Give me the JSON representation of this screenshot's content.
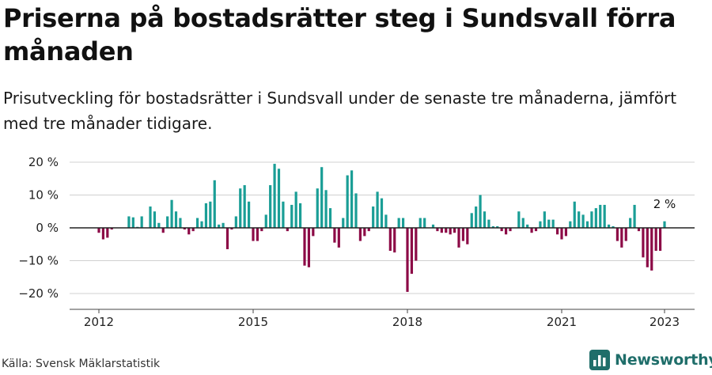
{
  "title": "Priserna på bostadsrätter steg i Sundsvall förra månaden",
  "subtitle": "Prisutveckling för bostadsrätter i Sundsvall under de senaste tre månaderna, jämfört med tre månader tidigare.",
  "source": "Källa: Svensk Mäklarstatistik",
  "brand": "Newsworthy",
  "colors": {
    "positive": "#1a9e96",
    "negative": "#8c0a46",
    "grid": "#d0d0d0",
    "brand": "#1f6e6a"
  },
  "chart_data": {
    "type": "bar",
    "xlabel": "",
    "ylabel": "",
    "ylim": [
      -22,
      22
    ],
    "y_ticks": [
      20,
      10,
      0,
      -10,
      -20
    ],
    "y_tick_labels": [
      "20 %",
      "10 %",
      "0 %",
      "−10 %",
      "−20 %"
    ],
    "x_ticks": [
      "2012-01",
      "2015-01",
      "2018-01",
      "2021-01",
      "2023-01"
    ],
    "x_tick_labels": [
      "2012",
      "2015",
      "2018",
      "2021",
      "2023"
    ],
    "grid": true,
    "annotation": {
      "date": "2023-01",
      "text": "2 %"
    },
    "series": [
      {
        "values": [
          {
            "date": "2012-01",
            "value": -1.5
          },
          {
            "date": "2012-02",
            "value": -3.5
          },
          {
            "date": "2012-03",
            "value": -3
          },
          {
            "date": "2012-04",
            "value": -0.5
          },
          {
            "date": "2012-05",
            "value": 0
          },
          {
            "date": "2012-06",
            "value": 0
          },
          {
            "date": "2012-07",
            "value": 0
          },
          {
            "date": "2012-08",
            "value": 3.5
          },
          {
            "date": "2012-09",
            "value": 3.2
          },
          {
            "date": "2012-10",
            "value": 0.3
          },
          {
            "date": "2012-11",
            "value": 3.5
          },
          {
            "date": "2012-12",
            "value": 0
          },
          {
            "date": "2013-01",
            "value": 6.5
          },
          {
            "date": "2013-02",
            "value": 5
          },
          {
            "date": "2013-03",
            "value": 1.5
          },
          {
            "date": "2013-04",
            "value": -1.5
          },
          {
            "date": "2013-05",
            "value": 3.5
          },
          {
            "date": "2013-06",
            "value": 8.5
          },
          {
            "date": "2013-07",
            "value": 5
          },
          {
            "date": "2013-08",
            "value": 3
          },
          {
            "date": "2013-09",
            "value": -0.5
          },
          {
            "date": "2013-10",
            "value": -2
          },
          {
            "date": "2013-11",
            "value": -1
          },
          {
            "date": "2013-12",
            "value": 3
          },
          {
            "date": "2014-01",
            "value": 2
          },
          {
            "date": "2014-02",
            "value": 7.5
          },
          {
            "date": "2014-03",
            "value": 8
          },
          {
            "date": "2014-04",
            "value": 14.5
          },
          {
            "date": "2014-05",
            "value": 1
          },
          {
            "date": "2014-06",
            "value": 1.5
          },
          {
            "date": "2014-07",
            "value": -6.5
          },
          {
            "date": "2014-08",
            "value": -0.5
          },
          {
            "date": "2014-09",
            "value": 3.5
          },
          {
            "date": "2014-10",
            "value": 12
          },
          {
            "date": "2014-11",
            "value": 13
          },
          {
            "date": "2014-12",
            "value": 8
          },
          {
            "date": "2015-01",
            "value": -4
          },
          {
            "date": "2015-02",
            "value": -4
          },
          {
            "date": "2015-03",
            "value": -1
          },
          {
            "date": "2015-04",
            "value": 4
          },
          {
            "date": "2015-05",
            "value": 13
          },
          {
            "date": "2015-06",
            "value": 19.5
          },
          {
            "date": "2015-07",
            "value": 18
          },
          {
            "date": "2015-08",
            "value": 8
          },
          {
            "date": "2015-09",
            "value": -1
          },
          {
            "date": "2015-10",
            "value": 7
          },
          {
            "date": "2015-11",
            "value": 11
          },
          {
            "date": "2015-12",
            "value": 7.5
          },
          {
            "date": "2016-01",
            "value": -11.5
          },
          {
            "date": "2016-02",
            "value": -12
          },
          {
            "date": "2016-03",
            "value": -2.5
          },
          {
            "date": "2016-04",
            "value": 12
          },
          {
            "date": "2016-05",
            "value": 18.5
          },
          {
            "date": "2016-06",
            "value": 11.5
          },
          {
            "date": "2016-07",
            "value": 6
          },
          {
            "date": "2016-08",
            "value": -4.5
          },
          {
            "date": "2016-09",
            "value": -6
          },
          {
            "date": "2016-10",
            "value": 3
          },
          {
            "date": "2016-11",
            "value": 16
          },
          {
            "date": "2016-12",
            "value": 17.5
          },
          {
            "date": "2017-01",
            "value": 10.5
          },
          {
            "date": "2017-02",
            "value": -4
          },
          {
            "date": "2017-03",
            "value": -2.5
          },
          {
            "date": "2017-04",
            "value": -1
          },
          {
            "date": "2017-05",
            "value": 6.5
          },
          {
            "date": "2017-06",
            "value": 11
          },
          {
            "date": "2017-07",
            "value": 9
          },
          {
            "date": "2017-08",
            "value": 4
          },
          {
            "date": "2017-09",
            "value": -7
          },
          {
            "date": "2017-10",
            "value": -7.5
          },
          {
            "date": "2017-11",
            "value": 3
          },
          {
            "date": "2017-12",
            "value": 3
          },
          {
            "date": "2018-01",
            "value": -19.5
          },
          {
            "date": "2018-02",
            "value": -14
          },
          {
            "date": "2018-03",
            "value": -10
          },
          {
            "date": "2018-04",
            "value": 3
          },
          {
            "date": "2018-05",
            "value": 3
          },
          {
            "date": "2018-06",
            "value": 0
          },
          {
            "date": "2018-07",
            "value": 1
          },
          {
            "date": "2018-08",
            "value": -1
          },
          {
            "date": "2018-09",
            "value": -1.5
          },
          {
            "date": "2018-10",
            "value": -1.5
          },
          {
            "date": "2018-11",
            "value": -2
          },
          {
            "date": "2018-12",
            "value": -1.5
          },
          {
            "date": "2019-01",
            "value": -6
          },
          {
            "date": "2019-02",
            "value": -4
          },
          {
            "date": "2019-03",
            "value": -5
          },
          {
            "date": "2019-04",
            "value": 4.5
          },
          {
            "date": "2019-05",
            "value": 6.5
          },
          {
            "date": "2019-06",
            "value": 10
          },
          {
            "date": "2019-07",
            "value": 5
          },
          {
            "date": "2019-08",
            "value": 2.5
          },
          {
            "date": "2019-09",
            "value": 0.5
          },
          {
            "date": "2019-10",
            "value": 0.5
          },
          {
            "date": "2019-11",
            "value": -1
          },
          {
            "date": "2019-12",
            "value": -2
          },
          {
            "date": "2020-01",
            "value": -1
          },
          {
            "date": "2020-02",
            "value": 0
          },
          {
            "date": "2020-03",
            "value": 5
          },
          {
            "date": "2020-04",
            "value": 3
          },
          {
            "date": "2020-05",
            "value": 1
          },
          {
            "date": "2020-06",
            "value": -1.5
          },
          {
            "date": "2020-07",
            "value": -1
          },
          {
            "date": "2020-08",
            "value": 2
          },
          {
            "date": "2020-09",
            "value": 5
          },
          {
            "date": "2020-10",
            "value": 2.5
          },
          {
            "date": "2020-11",
            "value": 2.5
          },
          {
            "date": "2020-12",
            "value": -2
          },
          {
            "date": "2021-01",
            "value": -3.5
          },
          {
            "date": "2021-02",
            "value": -2.5
          },
          {
            "date": "2021-03",
            "value": 2
          },
          {
            "date": "2021-04",
            "value": 8
          },
          {
            "date": "2021-05",
            "value": 5
          },
          {
            "date": "2021-06",
            "value": 4
          },
          {
            "date": "2021-07",
            "value": 2
          },
          {
            "date": "2021-08",
            "value": 5
          },
          {
            "date": "2021-09",
            "value": 6
          },
          {
            "date": "2021-10",
            "value": 7
          },
          {
            "date": "2021-11",
            "value": 7
          },
          {
            "date": "2021-12",
            "value": 1
          },
          {
            "date": "2022-01",
            "value": 0.5
          },
          {
            "date": "2022-02",
            "value": -4
          },
          {
            "date": "2022-03",
            "value": -6
          },
          {
            "date": "2022-04",
            "value": -4
          },
          {
            "date": "2022-05",
            "value": 3
          },
          {
            "date": "2022-06",
            "value": 7
          },
          {
            "date": "2022-07",
            "value": -1
          },
          {
            "date": "2022-08",
            "value": -9
          },
          {
            "date": "2022-09",
            "value": -12
          },
          {
            "date": "2022-10",
            "value": -13
          },
          {
            "date": "2022-11",
            "value": -7
          },
          {
            "date": "2022-12",
            "value": -7
          },
          {
            "date": "2023-01",
            "value": 2
          }
        ]
      }
    ]
  }
}
